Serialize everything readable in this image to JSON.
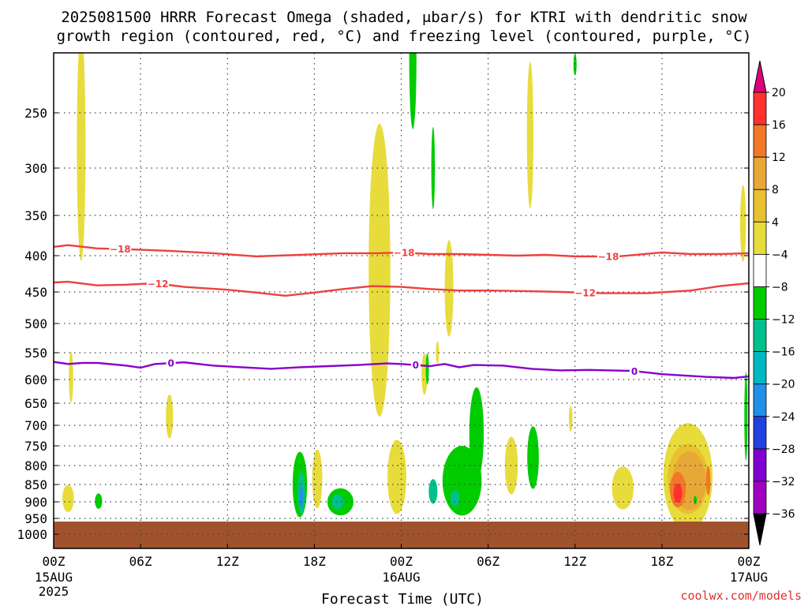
{
  "chart_data": {
    "type": "heatmap",
    "title_line1": "2025081500 HRRR Forecast Omega (shaded, μbar/s) for KTRI with dendritic snow",
    "title_line2": "growth region (contoured, red, °C) and freezing level (contoured, purple, °C)",
    "xlabel": "Forecast Time (UTC)",
    "credit": "coolwx.com/models",
    "x_range_hours": [
      0,
      48
    ],
    "y_range_hpa": [
      200,
      1050
    ],
    "x_ticks": [
      {
        "hour": 0,
        "label": "00Z",
        "sub1": "15AUG",
        "sub2": "2025"
      },
      {
        "hour": 6,
        "label": "06Z",
        "sub1": "",
        "sub2": ""
      },
      {
        "hour": 12,
        "label": "12Z",
        "sub1": "",
        "sub2": ""
      },
      {
        "hour": 18,
        "label": "18Z",
        "sub1": "",
        "sub2": ""
      },
      {
        "hour": 24,
        "label": "00Z",
        "sub1": "16AUG",
        "sub2": ""
      },
      {
        "hour": 30,
        "label": "06Z",
        "sub1": "",
        "sub2": ""
      },
      {
        "hour": 36,
        "label": "12Z",
        "sub1": "",
        "sub2": ""
      },
      {
        "hour": 42,
        "label": "18Z",
        "sub1": "",
        "sub2": ""
      },
      {
        "hour": 48,
        "label": "00Z",
        "sub1": "17AUG",
        "sub2": ""
      }
    ],
    "y_ticks": [
      250,
      300,
      350,
      400,
      450,
      500,
      550,
      600,
      650,
      700,
      750,
      800,
      850,
      900,
      950,
      1000
    ],
    "colorbar": {
      "ticks": [
        "20",
        "16",
        "12",
        "8",
        "4",
        "−4",
        "−8",
        "−12",
        "−16",
        "−20",
        "−24",
        "−28",
        "−32",
        "−36"
      ],
      "colors": [
        "#ff3030",
        "#f07828",
        "#e8a838",
        "#e8c030",
        "#e8dc3c",
        "#ffffff",
        "#00cc00",
        "#00c08c",
        "#00b8c0",
        "#2090e8",
        "#2040e0",
        "#8000d0",
        "#a000c0",
        "#a8a8a8"
      ],
      "top_color": "#e0007c",
      "bottom_color": "#000000"
    },
    "ground_color": "#a0522d",
    "series": [
      {
        "name": "-18",
        "color": "#ee4040",
        "labels": [
          {
            "hour": 4.6,
            "text": "−18"
          },
          {
            "hour": 24.2,
            "text": "−18"
          },
          {
            "hour": 38.3,
            "text": "−18"
          }
        ],
        "points": [
          [
            0,
            389
          ],
          [
            1,
            387
          ],
          [
            3,
            391
          ],
          [
            5,
            392
          ],
          [
            8,
            394
          ],
          [
            11,
            397
          ],
          [
            14,
            401
          ],
          [
            17,
            399
          ],
          [
            20,
            397
          ],
          [
            22.5,
            397
          ],
          [
            24,
            396
          ],
          [
            26,
            398
          ],
          [
            28,
            398
          ],
          [
            30,
            399
          ],
          [
            32,
            400
          ],
          [
            34,
            399
          ],
          [
            36,
            401
          ],
          [
            39,
            401
          ],
          [
            42,
            396
          ],
          [
            44,
            398
          ],
          [
            46,
            398
          ],
          [
            48,
            397
          ]
        ]
      },
      {
        "name": "-12",
        "color": "#ee4040",
        "labels": [
          {
            "hour": 7.2,
            "text": "−12"
          },
          {
            "hour": 36.7,
            "text": "−12"
          }
        ],
        "points": [
          [
            0,
            437
          ],
          [
            1,
            436
          ],
          [
            3,
            441
          ],
          [
            5,
            440
          ],
          [
            7,
            438
          ],
          [
            9,
            443
          ],
          [
            12,
            447
          ],
          [
            14,
            451
          ],
          [
            16,
            456
          ],
          [
            18,
            451
          ],
          [
            20,
            446
          ],
          [
            22,
            442
          ],
          [
            24,
            443
          ],
          [
            26,
            446
          ],
          [
            28,
            448
          ],
          [
            30,
            448
          ],
          [
            33,
            449
          ],
          [
            35,
            450
          ],
          [
            38,
            452
          ],
          [
            41,
            452
          ],
          [
            44,
            448
          ],
          [
            46,
            442
          ],
          [
            48,
            438
          ]
        ]
      },
      {
        "name": "0",
        "color": "#8800cc",
        "labels": [
          {
            "hour": 8.1,
            "text": "0"
          },
          {
            "hour": 25.0,
            "text": "0"
          },
          {
            "hour": 40.1,
            "text": "0"
          }
        ],
        "points": [
          [
            0,
            567
          ],
          [
            1,
            571
          ],
          [
            2,
            569
          ],
          [
            3,
            569
          ],
          [
            5,
            574
          ],
          [
            6,
            578
          ],
          [
            7,
            571
          ],
          [
            9,
            568
          ],
          [
            11,
            574
          ],
          [
            13,
            577
          ],
          [
            15,
            580
          ],
          [
            17,
            577
          ],
          [
            19,
            575
          ],
          [
            21,
            573
          ],
          [
            23,
            570
          ],
          [
            24,
            571
          ],
          [
            26,
            575
          ],
          [
            27,
            571
          ],
          [
            28,
            577
          ],
          [
            29,
            573
          ],
          [
            31,
            574
          ],
          [
            33,
            580
          ],
          [
            35,
            583
          ],
          [
            37,
            582
          ],
          [
            40,
            584
          ],
          [
            42,
            590
          ],
          [
            45,
            595
          ],
          [
            47,
            597
          ],
          [
            48,
            594
          ]
        ]
      }
    ],
    "omega_regions": [
      {
        "value": 4,
        "hour": 1.9,
        "p": 280,
        "w_h": 0.6,
        "h_p": 230
      },
      {
        "value": 4,
        "hour": 1.2,
        "p": 595,
        "w_h": 0.3,
        "h_p": 100
      },
      {
        "value": 4,
        "hour": 1.0,
        "p": 890,
        "w_h": 0.8,
        "h_p": 80
      },
      {
        "value": -4,
        "hour": 3.1,
        "p": 898,
        "w_h": 0.5,
        "h_p": 45
      },
      {
        "value": 4,
        "hour": 8.0,
        "p": 680,
        "w_h": 0.5,
        "h_p": 100
      },
      {
        "value": 4,
        "hour": 18.2,
        "p": 835,
        "w_h": 0.7,
        "h_p": 160
      },
      {
        "value": -4,
        "hour": 17.0,
        "p": 850,
        "w_h": 1.0,
        "h_p": 180
      },
      {
        "value": -8,
        "hour": 17.1,
        "p": 875,
        "w_h": 0.5,
        "h_p": 120
      },
      {
        "value": -16,
        "hour": 17.1,
        "p": 885,
        "w_h": 0.3,
        "h_p": 60
      },
      {
        "value": -4,
        "hour": 19.8,
        "p": 900,
        "w_h": 1.8,
        "h_p": 80
      },
      {
        "value": -8,
        "hour": 19.6,
        "p": 900,
        "w_h": 0.8,
        "h_p": 45
      },
      {
        "value": 4,
        "hour": 22.5,
        "p": 420,
        "w_h": 1.5,
        "h_p": 380
      },
      {
        "value": 4,
        "hour": 23.7,
        "p": 830,
        "w_h": 1.3,
        "h_p": 200
      },
      {
        "value": -4,
        "hour": 24.8,
        "p": 200,
        "w_h": 0.5,
        "h_p": 130
      },
      {
        "value": -4,
        "hour": 26.2,
        "p": 300,
        "w_h": 0.25,
        "h_p": 80
      },
      {
        "value": 4,
        "hour": 25.6,
        "p": 590,
        "w_h": 0.4,
        "h_p": 80
      },
      {
        "value": -4,
        "hour": 25.8,
        "p": 580,
        "w_h": 0.15,
        "h_p": 60
      },
      {
        "value": 4,
        "hour": 26.5,
        "p": 550,
        "w_h": 0.15,
        "h_p": 40
      },
      {
        "value": 4,
        "hour": 27.3,
        "p": 445,
        "w_h": 0.6,
        "h_p": 140
      },
      {
        "value": -4,
        "hour": 28.2,
        "p": 840,
        "w_h": 2.7,
        "h_p": 190
      },
      {
        "value": -4,
        "hour": 29.2,
        "p": 720,
        "w_h": 1.0,
        "h_p": 220
      },
      {
        "value": -8,
        "hour": 26.2,
        "p": 870,
        "w_h": 0.6,
        "h_p": 70
      },
      {
        "value": -8,
        "hour": 27.7,
        "p": 890,
        "w_h": 0.6,
        "h_p": 50
      },
      {
        "value": 4,
        "hour": 31.6,
        "p": 800,
        "w_h": 0.9,
        "h_p": 150
      },
      {
        "value": -4,
        "hour": 33.1,
        "p": 780,
        "w_h": 0.8,
        "h_p": 160
      },
      {
        "value": 4,
        "hour": 35.7,
        "p": 685,
        "w_h": 0.25,
        "h_p": 60
      },
      {
        "value": 4,
        "hour": 32.9,
        "p": 270,
        "w_h": 0.45,
        "h_p": 140
      },
      {
        "value": -4,
        "hour": 36.0,
        "p": 205,
        "w_h": 0.1,
        "h_p": 20
      },
      {
        "value": 4,
        "hour": 39.3,
        "p": 860,
        "w_h": 1.5,
        "h_p": 120
      },
      {
        "value": 4,
        "hour": 43.8,
        "p": 830,
        "w_h": 3.4,
        "h_p": 290
      },
      {
        "value": 8,
        "hour": 43.8,
        "p": 835,
        "w_h": 2.8,
        "h_p": 190
      },
      {
        "value": 12,
        "hour": 43.9,
        "p": 840,
        "w_h": 2.3,
        "h_p": 160
      },
      {
        "value": 16,
        "hour": 43.1,
        "p": 865,
        "w_h": 1.1,
        "h_p": 100
      },
      {
        "value": 20,
        "hour": 43.1,
        "p": 875,
        "w_h": 0.6,
        "h_p": 55
      },
      {
        "value": 16,
        "hour": 45.2,
        "p": 840,
        "w_h": 0.3,
        "h_p": 80
      },
      {
        "value": -4,
        "hour": 44.3,
        "p": 895,
        "w_h": 0.1,
        "h_p": 25
      },
      {
        "value": 4,
        "hour": 47.6,
        "p": 360,
        "w_h": 0.4,
        "h_p": 90
      },
      {
        "value": -4,
        "hour": 47.8,
        "p": 680,
        "w_h": 0.2,
        "h_p": 200
      }
    ]
  }
}
